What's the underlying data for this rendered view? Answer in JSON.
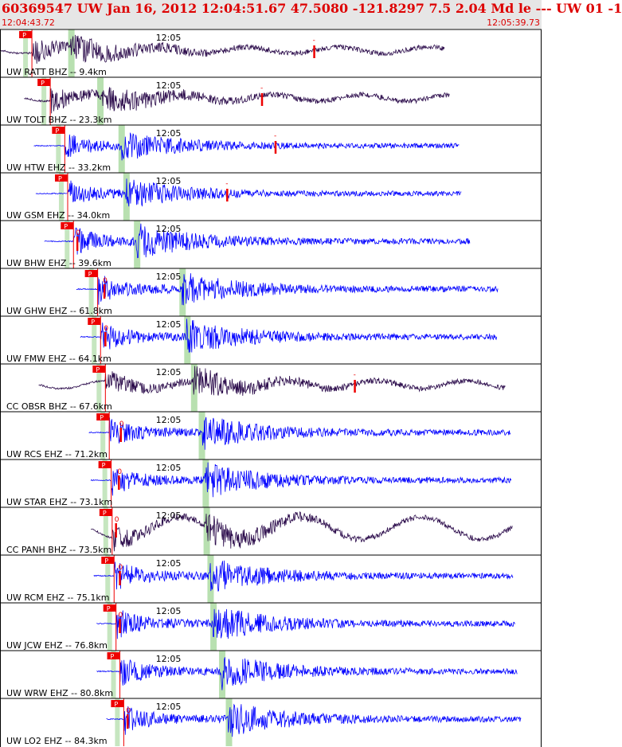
{
  "header": {
    "title": "60369547 UW Jan 16, 2012 12:04:51.67    47.5080 -121.8297  7.5 2.04 Md le --- UW 01  -1",
    "start_time": "12:04:43.72",
    "end_time": "12:05:39.73"
  },
  "colors": {
    "short_period": "#0000ff",
    "broadband": "#2a0a4a",
    "pick": "#ee0000",
    "s_window": "#b8e0b0",
    "grid": "#000000"
  },
  "chart_data": {
    "type": "line",
    "title": "",
    "x_axis": {
      "start": "12:04:43.72",
      "end": "12:05:39.73",
      "tick_label": "12:05"
    },
    "pick_label": "P",
    "coda_label": "-",
    "amp_label": "0",
    "series": [
      {
        "label": "UW RATT BHZ -- 9.4km",
        "channel": "BHZ",
        "distance_km": 9.4,
        "p_time_s": 3.3,
        "s_time_s": 7.3,
        "coda_time_s": 32.5,
        "amp_time_s": null,
        "start_s": 0.0,
        "end_s": 46.0
      },
      {
        "label": "UW TOLT BHZ -- 23.3km",
        "channel": "BHZ",
        "distance_km": 23.3,
        "p_time_s": 5.2,
        "s_time_s": 10.3,
        "coda_time_s": 27.1,
        "amp_time_s": null,
        "start_s": 2.5,
        "end_s": 46.5
      },
      {
        "label": "UW HTW EHZ -- 33.2km",
        "channel": "EHZ",
        "distance_km": 33.2,
        "p_time_s": 6.7,
        "s_time_s": 12.5,
        "coda_time_s": 28.5,
        "amp_time_s": null,
        "start_s": 3.5,
        "end_s": 47.5
      },
      {
        "label": "UW GSM EHZ -- 34.0km",
        "channel": "EHZ",
        "distance_km": 34.0,
        "p_time_s": 7.0,
        "s_time_s": 13.0,
        "coda_time_s": 23.5,
        "amp_time_s": null,
        "start_s": 3.7,
        "end_s": 47.7
      },
      {
        "label": "UW BHW EHZ -- 39.6km",
        "channel": "EHZ",
        "distance_km": 39.6,
        "p_time_s": 7.6,
        "s_time_s": 14.1,
        "coda_time_s": null,
        "amp_time_s": 8.0,
        "start_s": 4.6,
        "end_s": 48.6
      },
      {
        "label": "UW GHW EHZ -- 61.8km",
        "channel": "EHZ",
        "distance_km": 61.8,
        "p_time_s": 10.1,
        "s_time_s": 18.8,
        "coda_time_s": null,
        "amp_time_s": 10.8,
        "start_s": 7.9,
        "end_s": 51.5
      },
      {
        "label": "UW FMW EHZ -- 64.1km",
        "channel": "EHZ",
        "distance_km": 64.1,
        "p_time_s": 10.4,
        "s_time_s": 19.3,
        "coda_time_s": null,
        "amp_time_s": 10.9,
        "start_s": 8.3,
        "end_s": 51.4
      },
      {
        "label": "CC OBSR BHZ -- 67.6km",
        "channel": "BHZ",
        "distance_km": 67.6,
        "p_time_s": 10.9,
        "s_time_s": 20.0,
        "coda_time_s": 36.7,
        "amp_time_s": null,
        "start_s": 4.0,
        "end_s": 52.3
      },
      {
        "label": "UW RCS EHZ -- 71.2km",
        "channel": "EHZ",
        "distance_km": 71.2,
        "p_time_s": 11.3,
        "s_time_s": 20.8,
        "coda_time_s": null,
        "amp_time_s": 12.5,
        "start_s": 9.2,
        "end_s": 52.8
      },
      {
        "label": "UW STAR EHZ -- 73.1km",
        "channel": "EHZ",
        "distance_km": 73.1,
        "p_time_s": 11.5,
        "s_time_s": 21.2,
        "coda_time_s": null,
        "amp_time_s": 12.3,
        "start_s": 9.4,
        "end_s": 52.9
      },
      {
        "label": "CC PANH BHZ -- 73.5km",
        "channel": "BHZ",
        "distance_km": 73.5,
        "p_time_s": 11.6,
        "s_time_s": 21.3,
        "coda_time_s": null,
        "amp_time_s": 12.0,
        "start_s": 9.4,
        "end_s": 53.0
      },
      {
        "label": "UW RCM EHZ -- 75.1km",
        "channel": "EHZ",
        "distance_km": 75.1,
        "p_time_s": 11.8,
        "s_time_s": 21.7,
        "coda_time_s": null,
        "amp_time_s": 12.4,
        "start_s": 9.7,
        "end_s": 53.1
      },
      {
        "label": "UW JCW EHZ -- 76.8km",
        "channel": "EHZ",
        "distance_km": 76.8,
        "p_time_s": 12.0,
        "s_time_s": 22.0,
        "coda_time_s": null,
        "amp_time_s": 12.4,
        "start_s": 10.0,
        "end_s": 53.3
      },
      {
        "label": "UW WRW EHZ -- 80.8km",
        "channel": "EHZ",
        "distance_km": 80.8,
        "p_time_s": 12.4,
        "s_time_s": 22.9,
        "coda_time_s": null,
        "amp_time_s": null,
        "start_s": 10.0,
        "end_s": 53.5
      },
      {
        "label": "UW LO2 EHZ -- 84.3km",
        "channel": "EHZ",
        "distance_km": 84.3,
        "p_time_s": 12.8,
        "s_time_s": 23.6,
        "coda_time_s": null,
        "amp_time_s": 13.2,
        "start_s": 11.0,
        "end_s": 53.9
      }
    ]
  }
}
